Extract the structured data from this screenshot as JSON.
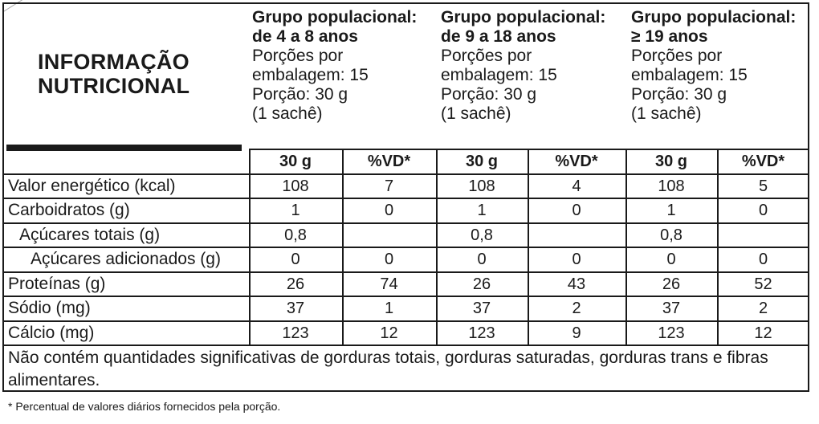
{
  "title": {
    "line1": "INFORMAÇÃO",
    "line2": "NUTRICIONAL"
  },
  "groups": [
    {
      "title_line1": "Grupo populacional:",
      "title_line2": "de 4 a 8 anos",
      "portions_line1": "Porções por",
      "portions_line2": "embalagem: 15",
      "portion_line1": "Porção: 30 g",
      "portion_line2": "(1 sachê)"
    },
    {
      "title_line1": "Grupo populacional:",
      "title_line2": "de 9 a 18 anos",
      "portions_line1": "Porções por",
      "portions_line2": "embalagem: 15",
      "portion_line1": "Porção: 30 g",
      "portion_line2": "(1 sachê)"
    },
    {
      "title_line1": "Grupo populacional:",
      "title_line2": "≥ 19 anos",
      "portions_line1": "Porções por",
      "portions_line2": "embalagem: 15",
      "portion_line1": "Porção: 30 g",
      "portion_line2": "(1 sachê)"
    }
  ],
  "column_headers": {
    "amount": "30 g",
    "vd": "%VD*"
  },
  "rows": [
    {
      "label": "Valor energético (kcal)",
      "values": [
        "108",
        "7",
        "108",
        "4",
        "108",
        "5"
      ]
    },
    {
      "label": "Carboidratos (g)",
      "values": [
        "1",
        "0",
        "1",
        "0",
        "1",
        "0"
      ]
    },
    {
      "label": "Açúcares totais (g)",
      "values": [
        "0,8",
        "",
        "0,8",
        "",
        "0,8",
        ""
      ]
    },
    {
      "label": "Açúcares adicionados (g)",
      "values": [
        "0",
        "0",
        "0",
        "0",
        "0",
        "0"
      ]
    },
    {
      "label": "Proteínas (g)",
      "values": [
        "26",
        "74",
        "26",
        "43",
        "26",
        "52"
      ]
    },
    {
      "label": "Sódio (mg)",
      "values": [
        "37",
        "1",
        "37",
        "2",
        "37",
        "2"
      ]
    },
    {
      "label": "Cálcio (mg)",
      "values": [
        "123",
        "12",
        "123",
        "9",
        "123",
        "12"
      ]
    }
  ],
  "footer_note": "Não contém quantidades significativas de gorduras totais, gorduras saturadas, gorduras trans e fibras alimentares.",
  "footnote": "* Percentual de valores diários fornecidos pela porção."
}
